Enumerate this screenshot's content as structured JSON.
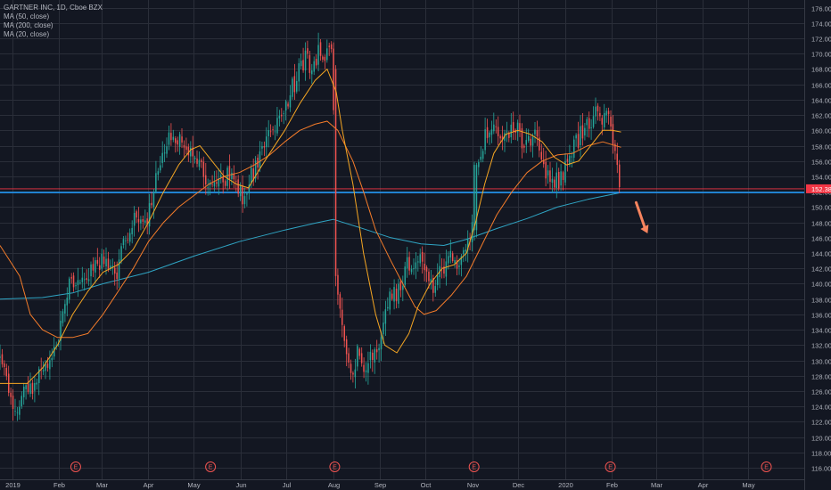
{
  "legend": {
    "title": "GARTNER INC, 1D, Cboe BZX",
    "ma1": "MA (50, close)",
    "ma2": "MA (200, close)",
    "ma3": "MA (20, close)"
  },
  "colors": {
    "background": "#131722",
    "grid": "#2a2e39",
    "up": "#26a69a",
    "down": "#ef5350",
    "ma50": "#f57c2a",
    "ma200": "#2fa5c4",
    "ma20": "#f5a623",
    "price_line": "#f23645",
    "support_line": "#2196f3",
    "arrow": "#f7845e",
    "axis_text": "#b2b5be"
  },
  "chart_data": {
    "type": "candlestick",
    "y_axis_ticks": [
      "116.00",
      "118.00",
      "120.00",
      "122.00",
      "124.00",
      "126.00",
      "128.00",
      "130.00",
      "132.00",
      "134.00",
      "136.00",
      "138.00",
      "140.00",
      "142.00",
      "144.00",
      "146.00",
      "148.00",
      "150.00",
      "152.00",
      "154.00",
      "156.00",
      "158.00",
      "160.00",
      "162.00",
      "164.00",
      "166.00",
      "168.00",
      "170.00",
      "172.00",
      "174.00",
      "176.00"
    ],
    "ylim": [
      114.5,
      177
    ],
    "x_ticks": [
      {
        "label": "2019",
        "day": 0
      },
      {
        "label": "Feb",
        "day": 31
      },
      {
        "label": "Mar",
        "day": 59
      },
      {
        "label": "Apr",
        "day": 90
      },
      {
        "label": "May",
        "day": 120
      },
      {
        "label": "Jun",
        "day": 151
      },
      {
        "label": "Jul",
        "day": 181
      },
      {
        "label": "Aug",
        "day": 212
      },
      {
        "label": "Sep",
        "day": 243
      },
      {
        "label": "Oct",
        "day": 273
      },
      {
        "label": "Nov",
        "day": 304
      },
      {
        "label": "Dec",
        "day": 334
      },
      {
        "label": "2020",
        "day": 365
      },
      {
        "label": "Feb",
        "day": 396
      },
      {
        "label": "Mar",
        "day": 425
      },
      {
        "label": "Apr",
        "day": 456
      },
      {
        "label": "May",
        "day": 486
      }
    ],
    "x_range_days": [
      -8,
      523
    ],
    "last_price": "152.38",
    "last_price_value": 152.38,
    "support_level": 151.9,
    "earnings_markers": {
      "label": "E",
      "days": [
        42,
        131,
        213,
        305,
        395,
        498
      ]
    },
    "price_path": [
      [
        -8,
        130
      ],
      [
        -4,
        127
      ],
      [
        2,
        123
      ],
      [
        6,
        125
      ],
      [
        10,
        127
      ],
      [
        14,
        126
      ],
      [
        18,
        129
      ],
      [
        22,
        129
      ],
      [
        26,
        131
      ],
      [
        30,
        133
      ],
      [
        34,
        136
      ],
      [
        38,
        140
      ],
      [
        44,
        140
      ],
      [
        50,
        141
      ],
      [
        56,
        143
      ],
      [
        62,
        143
      ],
      [
        66,
        141
      ],
      [
        70,
        142
      ],
      [
        75,
        146
      ],
      [
        80,
        148
      ],
      [
        85,
        148
      ],
      [
        90,
        149
      ],
      [
        94,
        153
      ],
      [
        98,
        156
      ],
      [
        102,
        158
      ],
      [
        106,
        160
      ],
      [
        110,
        159
      ],
      [
        114,
        157
      ],
      [
        118,
        158
      ],
      [
        122,
        156
      ],
      [
        126,
        155
      ],
      [
        130,
        153
      ],
      [
        134,
        152
      ],
      [
        138,
        153
      ],
      [
        142,
        154
      ],
      [
        146,
        155
      ],
      [
        150,
        152
      ],
      [
        154,
        151
      ],
      [
        158,
        154
      ],
      [
        162,
        156
      ],
      [
        166,
        158
      ],
      [
        170,
        159
      ],
      [
        174,
        160
      ],
      [
        178,
        162
      ],
      [
        182,
        164
      ],
      [
        186,
        166
      ],
      [
        190,
        168
      ],
      [
        194,
        170
      ],
      [
        198,
        168
      ],
      [
        200,
        169
      ],
      [
        203,
        171
      ],
      [
        206,
        170
      ],
      [
        209,
        171
      ],
      [
        212,
        169
      ],
      [
        213,
        141
      ],
      [
        216,
        138
      ],
      [
        219,
        134
      ],
      [
        222,
        129
      ],
      [
        225,
        128
      ],
      [
        228,
        131
      ],
      [
        231,
        129
      ],
      [
        234,
        130
      ],
      [
        237,
        131
      ],
      [
        240,
        130
      ],
      [
        243,
        133
      ],
      [
        246,
        136
      ],
      [
        250,
        138
      ],
      [
        254,
        139
      ],
      [
        258,
        141
      ],
      [
        262,
        143
      ],
      [
        266,
        142
      ],
      [
        270,
        143
      ],
      [
        274,
        141
      ],
      [
        278,
        139
      ],
      [
        282,
        141
      ],
      [
        286,
        143
      ],
      [
        290,
        144
      ],
      [
        294,
        143
      ],
      [
        298,
        145
      ],
      [
        302,
        146
      ],
      [
        304,
        147
      ],
      [
        306,
        156
      ],
      [
        310,
        158
      ],
      [
        314,
        160
      ],
      [
        318,
        161
      ],
      [
        322,
        160
      ],
      [
        326,
        159
      ],
      [
        330,
        160
      ],
      [
        334,
        160
      ],
      [
        338,
        158
      ],
      [
        342,
        158
      ],
      [
        346,
        159
      ],
      [
        350,
        156
      ],
      [
        354,
        154
      ],
      [
        358,
        153
      ],
      [
        362,
        154
      ],
      [
        366,
        155
      ],
      [
        370,
        158
      ],
      [
        374,
        159
      ],
      [
        378,
        160
      ],
      [
        382,
        161
      ],
      [
        386,
        162
      ],
      [
        390,
        162
      ],
      [
        393,
        164
      ],
      [
        396,
        159
      ],
      [
        398,
        157
      ],
      [
        400,
        155
      ],
      [
        401,
        153.5
      ],
      [
        402,
        152.4
      ]
    ],
    "ma_paths": {
      "ma200": [
        [
          -8,
          138
        ],
        [
          20,
          138.2
        ],
        [
          40,
          138.8
        ],
        [
          60,
          140
        ],
        [
          90,
          141.5
        ],
        [
          120,
          143.6
        ],
        [
          150,
          145.5
        ],
        [
          180,
          147
        ],
        [
          200,
          147.9
        ],
        [
          212,
          148.4
        ],
        [
          230,
          147.3
        ],
        [
          250,
          146
        ],
        [
          270,
          145.2
        ],
        [
          285,
          145
        ],
        [
          300,
          145.8
        ],
        [
          320,
          147.2
        ],
        [
          340,
          148.5
        ],
        [
          360,
          150
        ],
        [
          380,
          151
        ],
        [
          402,
          151.9
        ]
      ],
      "ma50": [
        [
          -8,
          145
        ],
        [
          5,
          141
        ],
        [
          12,
          136
        ],
        [
          20,
          134
        ],
        [
          30,
          133
        ],
        [
          40,
          133
        ],
        [
          50,
          133.5
        ],
        [
          60,
          136
        ],
        [
          70,
          139
        ],
        [
          80,
          142
        ],
        [
          90,
          145.5
        ],
        [
          100,
          148
        ],
        [
          110,
          150
        ],
        [
          120,
          151.5
        ],
        [
          130,
          153
        ],
        [
          140,
          154
        ],
        [
          150,
          154.5
        ],
        [
          160,
          155.5
        ],
        [
          170,
          156.8
        ],
        [
          180,
          158.5
        ],
        [
          190,
          160
        ],
        [
          200,
          160.8
        ],
        [
          208,
          161.2
        ],
        [
          215,
          160
        ],
        [
          225,
          156
        ],
        [
          232,
          152
        ],
        [
          240,
          147
        ],
        [
          250,
          143
        ],
        [
          258,
          140
        ],
        [
          266,
          137
        ],
        [
          272,
          136
        ],
        [
          280,
          136.5
        ],
        [
          290,
          138.5
        ],
        [
          300,
          141
        ],
        [
          310,
          145
        ],
        [
          320,
          149
        ],
        [
          330,
          152
        ],
        [
          340,
          154.5
        ],
        [
          350,
          156
        ],
        [
          360,
          156.8
        ],
        [
          370,
          157
        ],
        [
          380,
          158
        ],
        [
          390,
          158.5
        ],
        [
          395,
          158.2
        ],
        [
          402,
          157.8
        ]
      ],
      "ma20": [
        [
          -8,
          127
        ],
        [
          10,
          127
        ],
        [
          20,
          129
        ],
        [
          30,
          132
        ],
        [
          40,
          136
        ],
        [
          50,
          139
        ],
        [
          60,
          141.5
        ],
        [
          70,
          142.5
        ],
        [
          80,
          144.5
        ],
        [
          90,
          148
        ],
        [
          100,
          152
        ],
        [
          110,
          155.5
        ],
        [
          118,
          157.5
        ],
        [
          124,
          158
        ],
        [
          132,
          156
        ],
        [
          140,
          154
        ],
        [
          148,
          153
        ],
        [
          156,
          152.5
        ],
        [
          162,
          154.5
        ],
        [
          170,
          157
        ],
        [
          180,
          160
        ],
        [
          190,
          163.5
        ],
        [
          200,
          166.5
        ],
        [
          208,
          168
        ],
        [
          214,
          165
        ],
        [
          218,
          160
        ],
        [
          225,
          153
        ],
        [
          232,
          144
        ],
        [
          240,
          136
        ],
        [
          246,
          132
        ],
        [
          254,
          131
        ],
        [
          262,
          133.5
        ],
        [
          268,
          137
        ],
        [
          276,
          140
        ],
        [
          284,
          142
        ],
        [
          292,
          142.5
        ],
        [
          300,
          144
        ],
        [
          306,
          148
        ],
        [
          312,
          153
        ],
        [
          318,
          157
        ],
        [
          326,
          159.5
        ],
        [
          334,
          160
        ],
        [
          342,
          159.5
        ],
        [
          350,
          158.5
        ],
        [
          358,
          156.5
        ],
        [
          366,
          155.5
        ],
        [
          374,
          156
        ],
        [
          382,
          158
        ],
        [
          390,
          160
        ],
        [
          396,
          160
        ],
        [
          402,
          159.8
        ]
      ]
    }
  }
}
